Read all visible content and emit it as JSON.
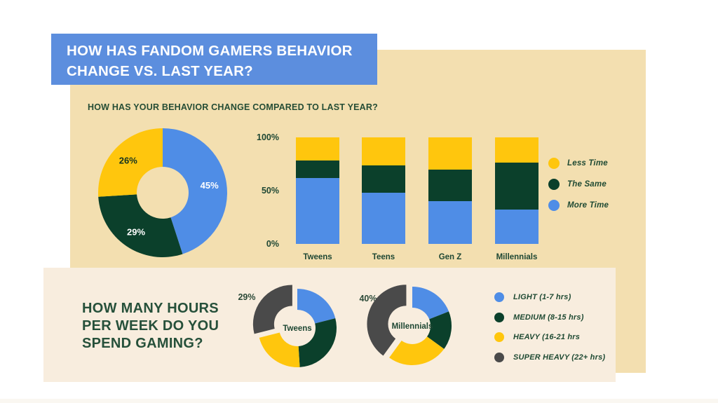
{
  "palette": {
    "blue": "#4F8DE6",
    "header_blue": "#5C8EDE",
    "yellow": "#FFC60D",
    "green": "#0B402B",
    "gray": "#4A4A4A",
    "beige": "#F3DFB0",
    "cream": "#F8EDDE",
    "text_green": "#1E4733",
    "white": "#FFFFFF"
  },
  "header": {
    "title_line1": "HOW HAS FANDOM GAMERS BEHAVIOR",
    "title_line2": "CHANGE VS. LAST YEAR?"
  },
  "section_behavior": {
    "subtitle": "HOW HAS YOUR BEHAVIOR CHANGE COMPARED TO LAST YEAR?"
  },
  "section_hours": {
    "heading_line1": "HOW MANY HOURS",
    "heading_line2": "PER WEEK DO YOU",
    "heading_line3": "SPEND GAMING?"
  },
  "legend_behavior": [
    {
      "label": "Less Time",
      "color": "yellow"
    },
    {
      "label": "The Same",
      "color": "green"
    },
    {
      "label": "More Time",
      "color": "blue"
    }
  ],
  "legend_hours": [
    {
      "label": "LIGHT (1-7 hrs)",
      "color": "blue"
    },
    {
      "label": "MEDIUM (8-15 hrs)",
      "color": "green"
    },
    {
      "label": "HEAVY (16-21 hrs",
      "color": "yellow"
    },
    {
      "label": "SUPER HEAVY (22+ hrs)",
      "color": "gray"
    }
  ],
  "chart_data": [
    {
      "type": "pie",
      "name": "behavior-change-donut",
      "donut": true,
      "slices": [
        {
          "label": "More Time",
          "value": 45,
          "color": "blue",
          "data_label": "45%"
        },
        {
          "label": "The Same",
          "value": 29,
          "color": "green",
          "data_label": "29%"
        },
        {
          "label": "Less Time",
          "value": 26,
          "color": "yellow",
          "data_label": "26%"
        }
      ]
    },
    {
      "type": "bar",
      "name": "behavior-by-generation",
      "stacked": true,
      "percent_stacked": true,
      "categories": [
        "Tweens",
        "Teens",
        "Gen Z",
        "Millennials"
      ],
      "series": [
        {
          "name": "More Time",
          "color": "blue",
          "values": [
            62,
            48,
            40,
            32
          ]
        },
        {
          "name": "The Same",
          "color": "green",
          "values": [
            16,
            26,
            30,
            44
          ]
        },
        {
          "name": "Less Time",
          "color": "yellow",
          "values": [
            22,
            26,
            30,
            24
          ]
        }
      ],
      "ylim": [
        0,
        100
      ],
      "yticks": [
        "100%",
        "50%",
        "0%"
      ],
      "legend_position": "right",
      "grid": false
    },
    {
      "type": "pie",
      "name": "hours-tweens-donut",
      "donut": true,
      "center_label": "Tweens",
      "callout": "29%",
      "slices": [
        {
          "label": "LIGHT (1-7 hrs)",
          "value": 21,
          "color": "blue"
        },
        {
          "label": "MEDIUM (8-15 hrs)",
          "value": 28,
          "color": "green"
        },
        {
          "label": "HEAVY (16-21 hrs",
          "value": 22,
          "color": "yellow"
        },
        {
          "label": "SUPER HEAVY (22+ hrs)",
          "value": 29,
          "color": "gray",
          "exploded": true
        }
      ]
    },
    {
      "type": "pie",
      "name": "hours-millennials-donut",
      "donut": true,
      "center_label": "Millennials",
      "callout": "40%",
      "slices": [
        {
          "label": "LIGHT (1-7 hrs)",
          "value": 19,
          "color": "blue"
        },
        {
          "label": "MEDIUM (8-15 hrs)",
          "value": 16,
          "color": "green"
        },
        {
          "label": "HEAVY (16-21 hrs",
          "value": 25,
          "color": "yellow"
        },
        {
          "label": "SUPER HEAVY (22+ hrs)",
          "value": 40,
          "color": "gray",
          "exploded": true
        }
      ]
    }
  ]
}
